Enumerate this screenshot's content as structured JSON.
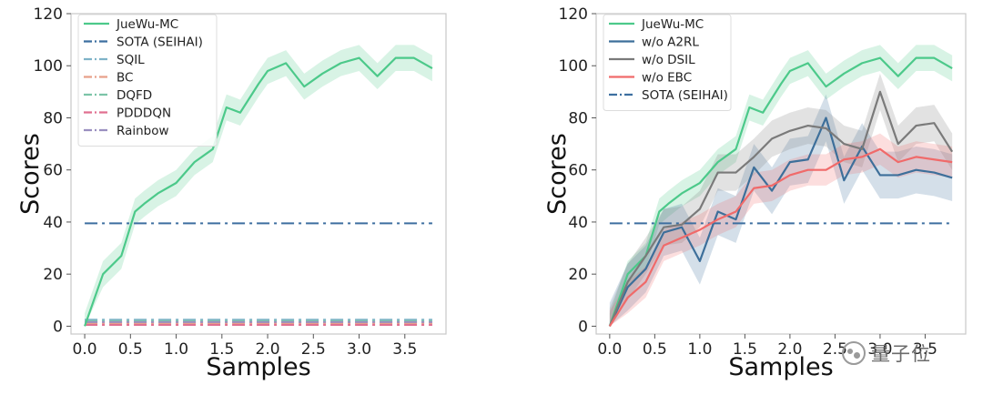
{
  "watermark": {
    "text": "量子位"
  },
  "chart_data": [
    {
      "type": "line",
      "xlabel": "Samples",
      "ylabel": "Scores",
      "xlim": [
        -0.15,
        3.95
      ],
      "ylim": [
        -3,
        120
      ],
      "xticks": [
        "0.0",
        "0.5",
        "1.0",
        "1.5",
        "2.0",
        "2.5",
        "3.0",
        "3.5"
      ],
      "yticks": [
        "0",
        "20",
        "40",
        "60",
        "80",
        "100",
        "120"
      ],
      "grid": false,
      "legend_position": "top-left",
      "series": [
        {
          "name": "JueWu-MC",
          "color": "#4cc98a",
          "dash": "solid",
          "shaded": true,
          "x": [
            0,
            0.2,
            0.4,
            0.55,
            0.65,
            0.8,
            1.0,
            1.2,
            1.4,
            1.55,
            1.7,
            1.9,
            2.0,
            2.2,
            2.4,
            2.6,
            2.8,
            3.0,
            3.2,
            3.4,
            3.6,
            3.8
          ],
          "y": [
            0,
            20,
            27,
            44,
            47,
            51,
            55,
            63,
            68,
            84,
            82,
            93,
            98,
            101,
            92,
            97,
            101,
            103,
            96,
            103,
            103,
            99
          ]
        },
        {
          "name": "SOTA (SEIHAI)",
          "color": "#3d6fa0",
          "dash": "dashdot",
          "x": [
            0,
            3.8
          ],
          "y": [
            39.5,
            39.5
          ]
        },
        {
          "name": "SQIL",
          "color": "#7fb3c8",
          "dash": "dashdot",
          "x": [
            0,
            3.8
          ],
          "y": [
            2.5,
            2.5
          ]
        },
        {
          "name": "BC",
          "color": "#e8a08a",
          "dash": "dashdot",
          "x": [
            0,
            3.8
          ],
          "y": [
            1.2,
            1.2
          ]
        },
        {
          "name": "DQFD",
          "color": "#7cc4a8",
          "dash": "dashdot",
          "x": [
            0,
            3.8
          ],
          "y": [
            2.0,
            2.0
          ]
        },
        {
          "name": "PDDDQN",
          "color": "#e07090",
          "dash": "dashdot",
          "x": [
            0,
            3.8
          ],
          "y": [
            0.5,
            0.5
          ]
        },
        {
          "name": "Rainbow",
          "color": "#9a8fc0",
          "dash": "dashdot",
          "x": [
            0,
            3.8
          ],
          "y": [
            1.6,
            1.6
          ]
        }
      ]
    },
    {
      "type": "line",
      "xlabel": "Samples",
      "ylabel": "Scores",
      "xlim": [
        -0.15,
        3.95
      ],
      "ylim": [
        -3,
        120
      ],
      "xticks": [
        "0.0",
        "0.5",
        "1.0",
        "1.5",
        "2.0",
        "2.5",
        "3.0",
        "3.5"
      ],
      "yticks": [
        "0",
        "20",
        "40",
        "60",
        "80",
        "100",
        "120"
      ],
      "grid": false,
      "legend_position": "top-left",
      "series": [
        {
          "name": "JueWu-MC",
          "color": "#4cc98a",
          "dash": "solid",
          "shaded": true,
          "x": [
            0,
            0.2,
            0.4,
            0.55,
            0.65,
            0.8,
            1.0,
            1.2,
            1.4,
            1.55,
            1.7,
            1.9,
            2.0,
            2.2,
            2.4,
            2.6,
            2.8,
            3.0,
            3.2,
            3.4,
            3.6,
            3.8
          ],
          "y": [
            0,
            20,
            27,
            44,
            47,
            51,
            55,
            63,
            68,
            84,
            82,
            93,
            98,
            101,
            92,
            97,
            101,
            103,
            96,
            103,
            103,
            99
          ]
        },
        {
          "name": "w/o A2RL",
          "color": "#3d6f9a",
          "dash": "solid",
          "shaded": true,
          "x": [
            0,
            0.2,
            0.4,
            0.6,
            0.8,
            1.0,
            1.2,
            1.4,
            1.6,
            1.8,
            2.0,
            2.2,
            2.4,
            2.6,
            2.8,
            3.0,
            3.2,
            3.4,
            3.6,
            3.8
          ],
          "y": [
            0,
            15,
            22,
            36,
            38,
            25,
            44,
            41,
            61,
            52,
            63,
            64,
            80,
            56,
            69,
            58,
            58,
            60,
            59,
            57
          ]
        },
        {
          "name": "w/o DSIL",
          "color": "#7a7a7a",
          "dash": "solid",
          "shaded": true,
          "x": [
            0,
            0.2,
            0.4,
            0.6,
            0.8,
            1.0,
            1.2,
            1.4,
            1.6,
            1.8,
            2.0,
            2.2,
            2.4,
            2.6,
            2.8,
            3.0,
            3.2,
            3.4,
            3.6,
            3.8
          ],
          "y": [
            0,
            17,
            27,
            38,
            39,
            45,
            59,
            59,
            65,
            72,
            75,
            77,
            76,
            70,
            68,
            90,
            70,
            77,
            78,
            67
          ]
        },
        {
          "name": "w/o EBC",
          "color": "#f06a6a",
          "dash": "solid",
          "shaded": true,
          "x": [
            0,
            0.2,
            0.4,
            0.6,
            0.8,
            1.0,
            1.2,
            1.4,
            1.6,
            1.8,
            2.0,
            2.2,
            2.4,
            2.6,
            2.8,
            3.0,
            3.2,
            3.4,
            3.6,
            3.8
          ],
          "y": [
            0,
            11,
            17,
            31,
            34,
            37,
            41,
            44,
            53,
            54,
            58,
            60,
            60,
            64,
            65,
            68,
            63,
            65,
            64,
            63
          ]
        },
        {
          "name": "SOTA (SEIHAI)",
          "color": "#3d6fa0",
          "dash": "dashdot",
          "x": [
            0,
            3.8
          ],
          "y": [
            39.5,
            39.5
          ]
        }
      ]
    }
  ]
}
